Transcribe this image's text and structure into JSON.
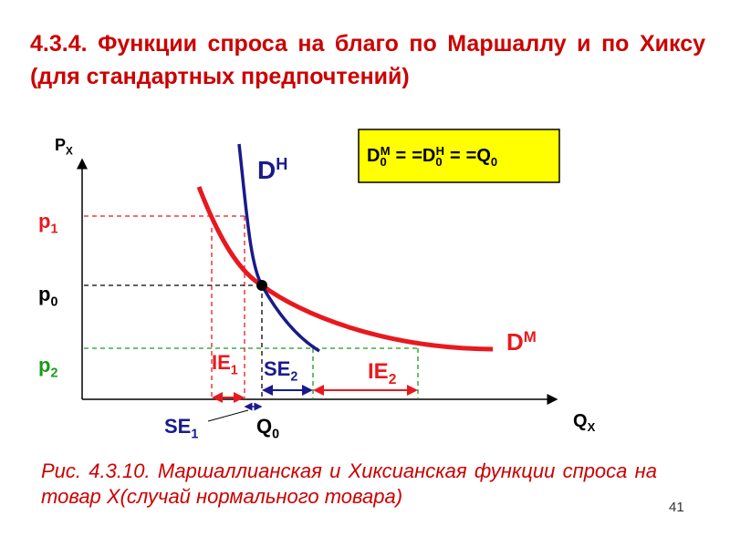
{
  "title": "4.3.4. Функции спроса на благо по Маршаллу и по Хиксу (для стандартных предпочтений)",
  "labels": {
    "px": {
      "base": "P",
      "sub": "X"
    },
    "qx": {
      "base": "Q",
      "sub": "X"
    },
    "p1": {
      "base": "p",
      "sub": "1"
    },
    "p0": {
      "base": "p",
      "sub": "0"
    },
    "p2": {
      "base": "p",
      "sub": "2"
    },
    "dh": {
      "base": "D",
      "sup": "H"
    },
    "dm": {
      "base": "D",
      "sup": "M"
    },
    "ie1": {
      "base": "IE",
      "sub": "1"
    },
    "se2": {
      "base": "SE",
      "sub": "2"
    },
    "ie2": {
      "base": "IE",
      "sub": "2"
    },
    "se1": {
      "base": "SE",
      "sub": "1"
    },
    "q0": {
      "base": "Q",
      "sub": "0"
    }
  },
  "box": {
    "terms": [
      {
        "base": "D",
        "sub": "0",
        "sup": "M"
      },
      {
        "base": "D",
        "sub": "0",
        "sup": "H"
      },
      {
        "base": "Q",
        "sub": "0"
      }
    ],
    "separator": "="
  },
  "caption": "Рис. 4.3.10. Маршаллианская и Хиксианская функции спроса на товар X(случай нормального товара)",
  "page_number": "41"
}
